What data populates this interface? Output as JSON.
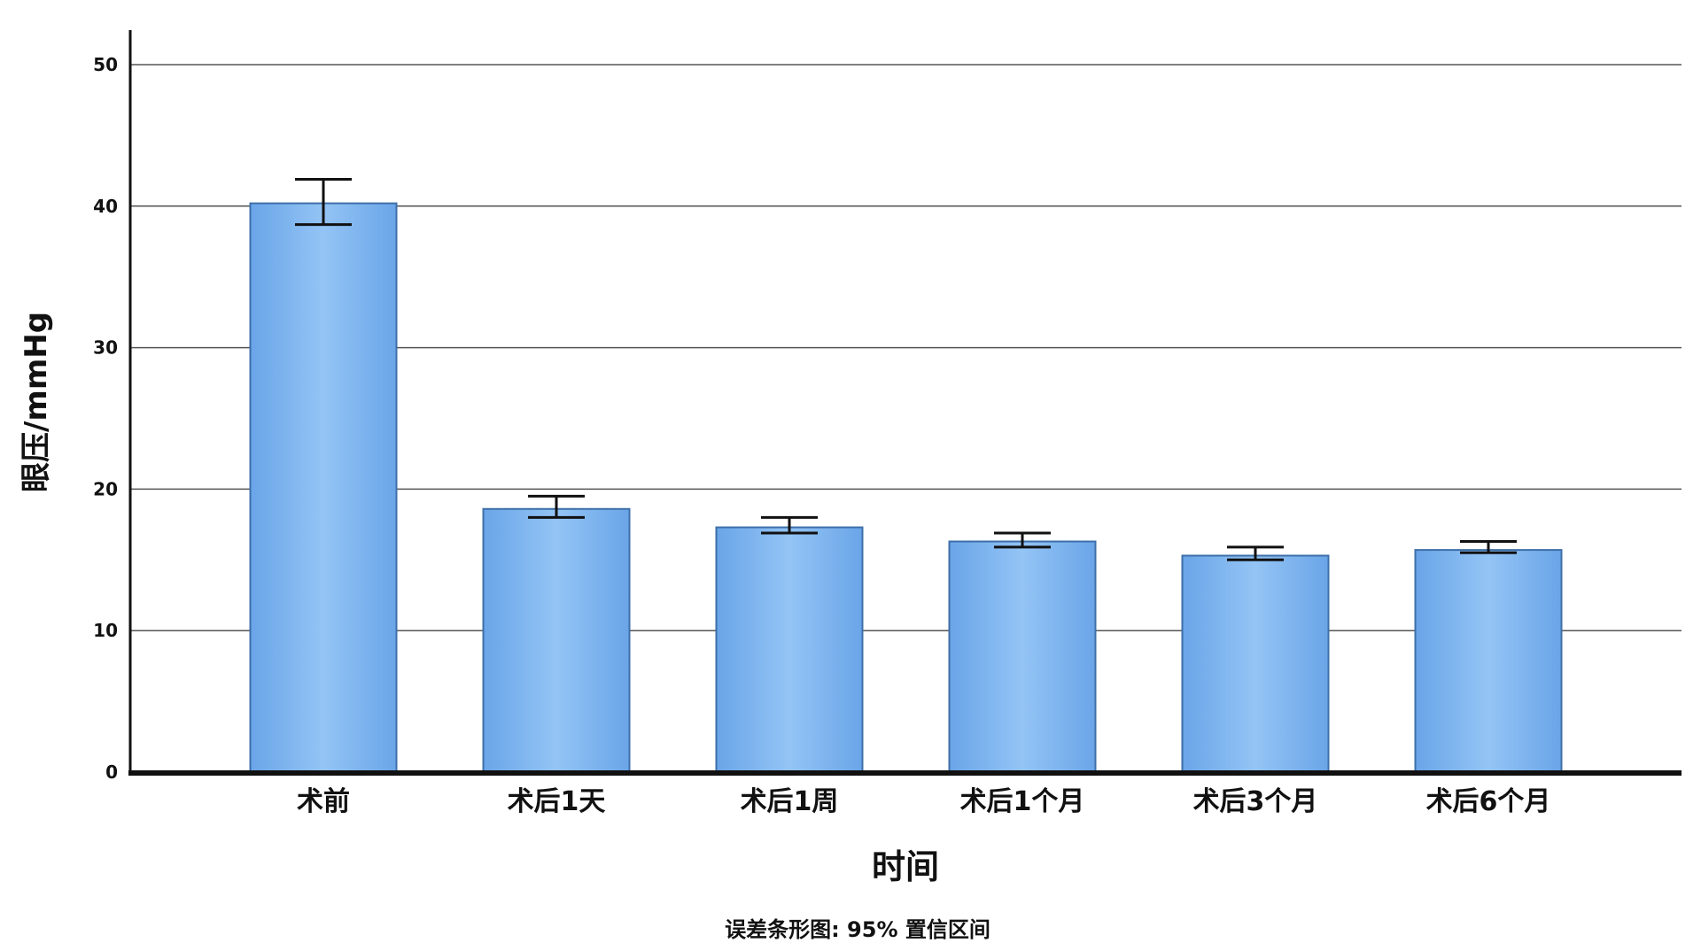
{
  "chart_data": {
    "type": "bar",
    "title": "",
    "xlabel": "时间",
    "ylabel": "眼压/mmHg",
    "footnote": "误差条形图: 95% 置信区间",
    "ylim": [
      0,
      50
    ],
    "yticks": [
      "0",
      "10",
      "20",
      "30",
      "40",
      "50"
    ],
    "grid": true,
    "categories": [
      "术前",
      "术后1天",
      "术后1周",
      "术后1个月",
      "术后3个月",
      "术后6个月"
    ],
    "values": [
      40.2,
      18.6,
      17.3,
      16.3,
      15.3,
      15.7
    ],
    "ci_lower": [
      38.7,
      18.0,
      16.9,
      15.9,
      15.0,
      15.5
    ],
    "ci_upper": [
      41.9,
      19.5,
      18.0,
      16.9,
      15.9,
      16.3
    ],
    "colors": {
      "bar": "#7fb5ee",
      "bar_edge": "#3d6fa8",
      "grid": "#555555"
    }
  }
}
